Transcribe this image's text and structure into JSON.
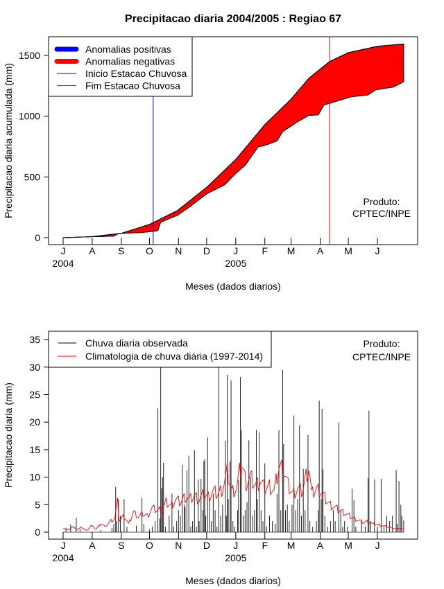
{
  "title": "Precipitacao diaria 2004/2005 : Regiao 67",
  "colors": {
    "positive": "#0000ff",
    "negative": "#ff0000",
    "start": "#0000ff",
    "end": "#ff0000",
    "observed": "#000000",
    "climatology": "#ff0000"
  },
  "chart_data": [
    {
      "type": "area",
      "title": "Precipitacao diaria 2004/2005 : Regiao 67",
      "xlabel": "Meses (dados diarios)",
      "ylabel": "Precipitacao diaria acumulada (mm)",
      "ylim": [
        0,
        1600
      ],
      "yticks": [
        "0",
        "500",
        "1000",
        "1500"
      ],
      "yticks_values": [
        0,
        500,
        1000,
        1500
      ],
      "month_labels": [
        "J",
        "A",
        "S",
        "O",
        "N",
        "D",
        "J",
        "F",
        "M",
        "A",
        "M",
        "J"
      ],
      "month_days": [
        0,
        31,
        62,
        92,
        123,
        153,
        184,
        215,
        243,
        274,
        304,
        335
      ],
      "year_labels": [
        {
          "label": "2004",
          "day": 0
        },
        {
          "label": "2005",
          "day": 184
        }
      ],
      "legend": [
        "Anomalias positivas",
        "Anomalias negativas",
        "Inicio Estacao Chuvosa",
        "Fim Estacao Chuvosa"
      ],
      "legend_position": "top-left",
      "annotation": [
        "Produto:",
        "CPTEC/INPE"
      ],
      "rainy_season_start_day": 96,
      "rainy_season_end_day": 284,
      "climatology_cumulative": [
        [
          0,
          0
        ],
        [
          30,
          8
        ],
        [
          62,
          36
        ],
        [
          92,
          109
        ],
        [
          122,
          224
        ],
        [
          153,
          415
        ],
        [
          184,
          644
        ],
        [
          215,
          931
        ],
        [
          243,
          1141
        ],
        [
          262,
          1313
        ],
        [
          284,
          1450
        ],
        [
          304,
          1523
        ],
        [
          336,
          1577
        ],
        [
          363,
          1594
        ]
      ],
      "observed_cumulative": [
        [
          0,
          0
        ],
        [
          30,
          8
        ],
        [
          54,
          13
        ],
        [
          58,
          30
        ],
        [
          62,
          36
        ],
        [
          83,
          42
        ],
        [
          99,
          55
        ],
        [
          101,
          60
        ],
        [
          104,
          128
        ],
        [
          122,
          185
        ],
        [
          133,
          243
        ],
        [
          153,
          361
        ],
        [
          172,
          434
        ],
        [
          184,
          529
        ],
        [
          194,
          596
        ],
        [
          208,
          749
        ],
        [
          215,
          759
        ],
        [
          228,
          797
        ],
        [
          234,
          873
        ],
        [
          249,
          950
        ],
        [
          262,
          1007
        ],
        [
          272,
          1011
        ],
        [
          278,
          1093
        ],
        [
          284,
          1106
        ],
        [
          307,
          1160
        ],
        [
          325,
          1175
        ],
        [
          333,
          1217
        ],
        [
          352,
          1240
        ],
        [
          363,
          1284
        ]
      ]
    },
    {
      "type": "bar",
      "xlabel": "Meses (dados diarios)",
      "ylabel": "Precipitacao diaria (mm)",
      "ylim": [
        0,
        36
      ],
      "yticks": [
        "0",
        "5",
        "10",
        "15",
        "20",
        "25",
        "30",
        "35"
      ],
      "yticks_values": [
        0,
        5,
        10,
        15,
        20,
        25,
        30,
        35
      ],
      "month_labels": [
        "J",
        "A",
        "S",
        "O",
        "N",
        "D",
        "J",
        "F",
        "M",
        "A",
        "M",
        "J"
      ],
      "month_days": [
        0,
        31,
        62,
        92,
        123,
        153,
        184,
        215,
        243,
        274,
        304,
        335
      ],
      "year_labels": [
        {
          "label": "2004",
          "day": 0
        },
        {
          "label": "2005",
          "day": 184
        }
      ],
      "legend": [
        "Chuva diaria observada",
        "Climatologia de chuva diária (1997-2014)"
      ],
      "legend_position": "top-left",
      "annotation": [
        "Produto:",
        "CPTEC/INPE"
      ],
      "observed_daily": [
        [
          3,
          0.8
        ],
        [
          8,
          1.4
        ],
        [
          14,
          2.6
        ],
        [
          18,
          0.6
        ],
        [
          40,
          0.4
        ],
        [
          52,
          0.8
        ],
        [
          54,
          1.5
        ],
        [
          56,
          8.2
        ],
        [
          57,
          2
        ],
        [
          59,
          6
        ],
        [
          61,
          3
        ],
        [
          65,
          6
        ],
        [
          68,
          1
        ],
        [
          78,
          1.2
        ],
        [
          84,
          6.2
        ],
        [
          86,
          1.5
        ],
        [
          92,
          0.5
        ],
        [
          95,
          1
        ],
        [
          98,
          2
        ],
        [
          101,
          22.5
        ],
        [
          103,
          2.5
        ],
        [
          104,
          31
        ],
        [
          105,
          8
        ],
        [
          106,
          10
        ],
        [
          107,
          12.6
        ],
        [
          109,
          1
        ],
        [
          113,
          3
        ],
        [
          116,
          7
        ],
        [
          118,
          1
        ],
        [
          121,
          2
        ],
        [
          123,
          4
        ],
        [
          125,
          3
        ],
        [
          127,
          12.2
        ],
        [
          129,
          5
        ],
        [
          130,
          4.5
        ],
        [
          132,
          11.2
        ],
        [
          134,
          13.9
        ],
        [
          136,
          1
        ],
        [
          138,
          2
        ],
        [
          140,
          14.9
        ],
        [
          142,
          1
        ],
        [
          144,
          9.6
        ],
        [
          145,
          2
        ],
        [
          147,
          9.7
        ],
        [
          149,
          4
        ],
        [
          150,
          12.9
        ],
        [
          151,
          13.3
        ],
        [
          152,
          3
        ],
        [
          154,
          17.2
        ],
        [
          156,
          6
        ],
        [
          158,
          2
        ],
        [
          160,
          7
        ],
        [
          162,
          4
        ],
        [
          164,
          1
        ],
        [
          166,
          33
        ],
        [
          168,
          3
        ],
        [
          170,
          5
        ],
        [
          173,
          16.6
        ],
        [
          174,
          3
        ],
        [
          175,
          28.6
        ],
        [
          176,
          6
        ],
        [
          178,
          12.9
        ],
        [
          179,
          27.6
        ],
        [
          181,
          2
        ],
        [
          183,
          1
        ],
        [
          186,
          4
        ],
        [
          187,
          9.5
        ],
        [
          189,
          28.2
        ],
        [
          190,
          18.5
        ],
        [
          192,
          3
        ],
        [
          194,
          4
        ],
        [
          196,
          5.5
        ],
        [
          198,
          16.7
        ],
        [
          200,
          10
        ],
        [
          202,
          3
        ],
        [
          204,
          4
        ],
        [
          206,
          18.6
        ],
        [
          207,
          6
        ],
        [
          209,
          18.1
        ],
        [
          211,
          4
        ],
        [
          213,
          2
        ],
        [
          215,
          12.5
        ],
        [
          217,
          1
        ],
        [
          220,
          3
        ],
        [
          223,
          2
        ],
        [
          226,
          1.5
        ],
        [
          228,
          7
        ],
        [
          230,
          18.5
        ],
        [
          232,
          4
        ],
        [
          234,
          29.5
        ],
        [
          235,
          16
        ],
        [
          237,
          4
        ],
        [
          239,
          5
        ],
        [
          241,
          2
        ],
        [
          244,
          5
        ],
        [
          246,
          21.2
        ],
        [
          248,
          4
        ],
        [
          250,
          6
        ],
        [
          252,
          19.4
        ],
        [
          254,
          3
        ],
        [
          256,
          11.5
        ],
        [
          258,
          4
        ],
        [
          261,
          17.7
        ],
        [
          263,
          2
        ],
        [
          266,
          1
        ],
        [
          270,
          2
        ],
        [
          272,
          4
        ],
        [
          273,
          23.9
        ],
        [
          275,
          6
        ],
        [
          276,
          22.4
        ],
        [
          277,
          11.4
        ],
        [
          279,
          3
        ],
        [
          282,
          1
        ],
        [
          285,
          2
        ],
        [
          288,
          4
        ],
        [
          290,
          2
        ],
        [
          294,
          20
        ],
        [
          296,
          4
        ],
        [
          298,
          1
        ],
        [
          300,
          2
        ],
        [
          303,
          1
        ],
        [
          308,
          7.9
        ],
        [
          310,
          5.8
        ],
        [
          312,
          1
        ],
        [
          318,
          2
        ],
        [
          322,
          1
        ],
        [
          325,
          9.8
        ],
        [
          326,
          22.1
        ],
        [
          328,
          2
        ],
        [
          332,
          9.6
        ],
        [
          335,
          1
        ],
        [
          339,
          9.7
        ],
        [
          342,
          1
        ],
        [
          345,
          3
        ],
        [
          348,
          2
        ],
        [
          351,
          3
        ],
        [
          355,
          11.3
        ],
        [
          356,
          1.5
        ],
        [
          358,
          9.3
        ],
        [
          360,
          5
        ],
        [
          361,
          3
        ],
        [
          363,
          2.1
        ]
      ],
      "climatology_daily": [
        [
          0,
          0.8
        ],
        [
          5,
          0.4
        ],
        [
          10,
          1
        ],
        [
          15,
          0.5
        ],
        [
          20,
          0.9
        ],
        [
          25,
          0.3
        ],
        [
          30,
          1.2
        ],
        [
          35,
          0.5
        ],
        [
          40,
          1.6
        ],
        [
          45,
          1.0
        ],
        [
          50,
          2.0
        ],
        [
          55,
          2.5
        ],
        [
          58,
          5.5
        ],
        [
          60,
          2.2
        ],
        [
          65,
          3.0
        ],
        [
          70,
          1.5
        ],
        [
          75,
          3.8
        ],
        [
          80,
          2.8
        ],
        [
          85,
          3.4
        ],
        [
          90,
          3.0
        ],
        [
          95,
          4.5
        ],
        [
          100,
          4.0
        ],
        [
          105,
          4.2
        ],
        [
          110,
          5.5
        ],
        [
          115,
          4.8
        ],
        [
          120,
          6.0
        ],
        [
          125,
          5.5
        ],
        [
          130,
          6.5
        ],
        [
          135,
          6.0
        ],
        [
          140,
          6.7
        ],
        [
          145,
          6.0
        ],
        [
          150,
          7.0
        ],
        [
          155,
          6.5
        ],
        [
          160,
          7.5
        ],
        [
          165,
          7.0
        ],
        [
          170,
          8.0
        ],
        [
          175,
          11.0
        ],
        [
          180,
          7.5
        ],
        [
          185,
          8.0
        ],
        [
          190,
          13.0
        ],
        [
          195,
          9.0
        ],
        [
          200,
          10.0
        ],
        [
          205,
          8.5
        ],
        [
          210,
          9.5
        ],
        [
          215,
          8.0
        ],
        [
          220,
          8.5
        ],
        [
          225,
          7.5
        ],
        [
          230,
          12.0
        ],
        [
          235,
          11.5
        ],
        [
          240,
          8.5
        ],
        [
          245,
          7.0
        ],
        [
          250,
          8.0
        ],
        [
          255,
          7.5
        ],
        [
          260,
          11.0
        ],
        [
          262,
          12.0
        ],
        [
          265,
          7.0
        ],
        [
          270,
          8.0
        ],
        [
          275,
          7.5
        ],
        [
          280,
          6.0
        ],
        [
          285,
          5.0
        ],
        [
          290,
          4.5
        ],
        [
          295,
          4.0
        ],
        [
          300,
          3.5
        ],
        [
          305,
          3.0
        ],
        [
          310,
          2.5
        ],
        [
          315,
          2.2
        ],
        [
          320,
          1.8
        ],
        [
          325,
          2.0
        ],
        [
          330,
          1.5
        ],
        [
          335,
          1.4
        ],
        [
          340,
          1.2
        ],
        [
          345,
          1.0
        ],
        [
          350,
          0.8
        ],
        [
          355,
          0.6
        ],
        [
          360,
          0.7
        ],
        [
          363,
          0.5
        ]
      ]
    }
  ]
}
